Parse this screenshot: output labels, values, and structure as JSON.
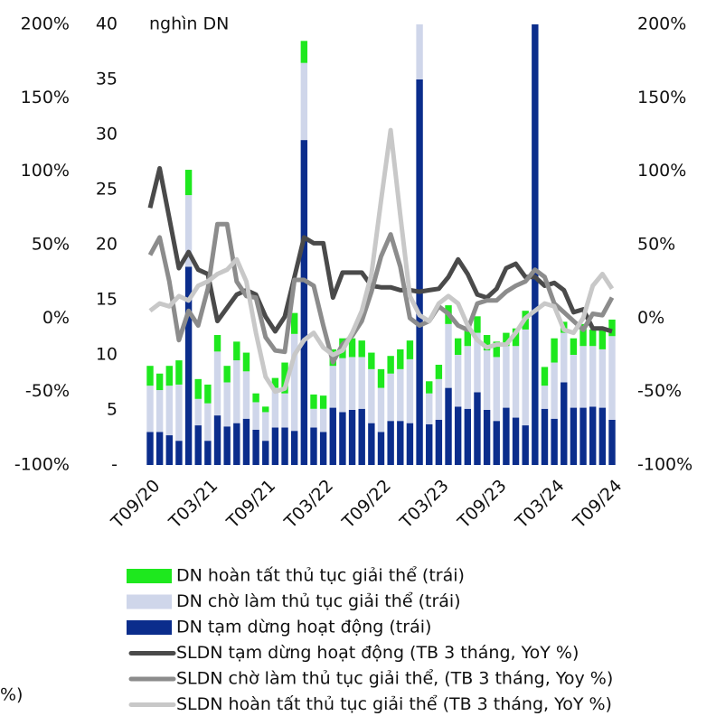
{
  "chart_data": {
    "type": "bar",
    "annotation": "nghìn DN",
    "fragment": "%)",
    "categories": [
      "T09/20",
      null,
      null,
      null,
      null,
      null,
      "T03/21",
      null,
      null,
      null,
      null,
      null,
      "T09/21",
      null,
      null,
      null,
      null,
      null,
      "T03/22",
      null,
      null,
      null,
      null,
      null,
      "T09/22",
      null,
      null,
      null,
      null,
      null,
      "T03/23",
      null,
      null,
      null,
      null,
      null,
      "T09/23",
      null,
      null,
      null,
      null,
      null,
      "T03/24",
      null,
      null,
      null,
      null,
      null,
      "T09/24"
    ],
    "ylim": [
      0,
      40
    ],
    "yticks": [
      {
        "value": 0,
        "label": "-"
      },
      5,
      10,
      15,
      20,
      25,
      30,
      35,
      40
    ],
    "y2lim": [
      -100,
      200
    ],
    "y2ticks": [
      {
        "value": -100,
        "label": "-100%"
      },
      {
        "value": -50,
        "label": "-50%"
      },
      {
        "value": 0,
        "label": "0%"
      },
      {
        "value": 50,
        "label": "50%"
      },
      {
        "value": 100,
        "label": "100%"
      },
      {
        "value": 150,
        "label": "150%"
      },
      {
        "value": 200,
        "label": "200%"
      }
    ],
    "stacked": true,
    "series": [
      {
        "name": "DN tạm dừng hoạt động (trái)",
        "color": "#0b2d8c",
        "kind": "bar",
        "values": [
          3,
          3,
          2.7,
          2.2,
          18,
          3.6,
          2.2,
          4.5,
          3.5,
          3.8,
          4.2,
          3.2,
          2.2,
          3.4,
          3.4,
          3.1,
          29.5,
          3.4,
          3,
          5.2,
          4.8,
          5,
          5.1,
          3.8,
          3,
          4,
          4,
          3.8,
          35,
          3.7,
          4.1,
          7,
          5.3,
          5.1,
          6.6,
          5,
          4,
          5.2,
          4.3,
          3.6,
          43,
          5.1,
          4.2,
          7.5,
          5.2,
          5.2,
          5.3,
          5.2,
          4.1
        ]
      },
      {
        "name": "DN chờ làm thủ tục giải thể (trái)",
        "color": "#cfd6ea",
        "kind": "bar",
        "values": [
          4.2,
          3.8,
          4.5,
          5.1,
          6.5,
          2.4,
          3.4,
          5.8,
          4,
          5.7,
          4.3,
          2.5,
          2.6,
          3.6,
          3.1,
          8.8,
          7,
          1.7,
          2.1,
          3.8,
          4.9,
          4.8,
          4.7,
          4.9,
          4,
          4.3,
          4.7,
          5.8,
          7,
          2.8,
          3.7,
          5.8,
          4.7,
          5.7,
          5.4,
          5.4,
          5.8,
          5.6,
          6.5,
          8.7,
          5,
          2.1,
          5.1,
          4.5,
          4.8,
          5.6,
          5.5,
          5.3,
          7.6
        ]
      },
      {
        "name": "DN hoàn tất thủ tục giải thể (trái)",
        "color": "#1ee81e",
        "kind": "bar",
        "values": [
          1.8,
          1.5,
          1.8,
          2.2,
          2.3,
          1.8,
          1.7,
          1.5,
          1.5,
          1.7,
          1.7,
          0.8,
          0.5,
          0.9,
          2.8,
          1.9,
          2,
          1.3,
          1.2,
          1.5,
          1.8,
          1.7,
          1.5,
          1.5,
          1.7,
          1.6,
          1.8,
          1.7,
          1,
          1.1,
          1.3,
          1.7,
          1.5,
          1.5,
          1.5,
          1.4,
          1.4,
          1.2,
          1.6,
          1.7,
          1.5,
          1.7,
          2.2,
          1,
          1.5,
          2,
          1.5,
          1.8,
          1.5
        ]
      },
      {
        "name": "SLDN tạm dừng hoạt động (TB 3 tháng, YoY %)",
        "color": "#4a4a4a",
        "kind": "line",
        "axis": "y2",
        "values": [
          75,
          102,
          68,
          34,
          45,
          33,
          30,
          -2,
          7,
          16,
          19,
          16,
          1,
          -9,
          1,
          28,
          55,
          51,
          51,
          14,
          31,
          31,
          31,
          22,
          21,
          21,
          19,
          19,
          18,
          19,
          20,
          28,
          40,
          30,
          16,
          14,
          20,
          34,
          37,
          28,
          28,
          22,
          24,
          19,
          4,
          6,
          -7,
          -7,
          -9
        ]
      },
      {
        "name": "SLDN chờ làm thủ tục giải thể, (TB 3 tháng, Yoy %)",
        "color": "#8c8c8c",
        "kind": "line",
        "axis": "y2",
        "values": [
          43,
          55,
          25,
          -15,
          5,
          -5,
          20,
          64,
          64,
          25,
          15,
          14,
          -13,
          -22,
          -23,
          26,
          26,
          22,
          -5,
          -30,
          -18,
          -12,
          -2,
          18,
          42,
          57,
          35,
          0,
          -5,
          -2,
          8,
          3,
          -5,
          -8,
          10,
          12,
          12,
          18,
          22,
          25,
          33,
          28,
          10,
          4,
          -2,
          -8,
          3,
          2,
          14
        ]
      },
      {
        "name": "SLDN hoàn tất thủ tục giải thể (TB 3 tháng, YoY %)",
        "color": "#c8c8c8",
        "kind": "line",
        "axis": "y2",
        "values": [
          5,
          10,
          8,
          15,
          12,
          22,
          25,
          30,
          33,
          40,
          25,
          -10,
          -40,
          -50,
          -48,
          -25,
          -15,
          -10,
          -20,
          -25,
          -22,
          -10,
          5,
          30,
          80,
          128,
          70,
          15,
          2,
          -2,
          10,
          15,
          10,
          -5,
          -15,
          -20,
          -18,
          -18,
          -10,
          0,
          5,
          10,
          8,
          -8,
          -10,
          0,
          22,
          30,
          20
        ]
      }
    ]
  }
}
